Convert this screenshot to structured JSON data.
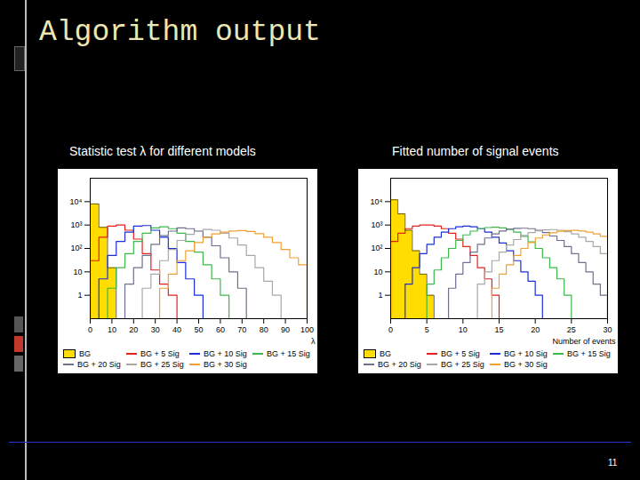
{
  "slide": {
    "title": "Algorithm output",
    "page": 11
  },
  "chart_data": [
    {
      "type": "histogram",
      "title": "Statistic test λ for different models",
      "xlabel": "λ",
      "log": "y",
      "grid": false,
      "legend": "bottom",
      "xlim": [
        0,
        100
      ],
      "xticks": [
        0,
        10,
        20,
        30,
        40,
        50,
        60,
        70,
        80,
        90,
        100
      ],
      "ylim": [
        0.1,
        100000
      ],
      "yticks": [
        1,
        10,
        {
          "value": 100,
          "label": "10²"
        },
        {
          "value": 1000,
          "label": "10³"
        },
        {
          "value": 10000,
          "label": "10⁴"
        }
      ],
      "bins": [
        0,
        4,
        8,
        12,
        16,
        20,
        24,
        28,
        32,
        36,
        40,
        44,
        48,
        52,
        56,
        60,
        64,
        68,
        72,
        76,
        80,
        84,
        88,
        92,
        96,
        100
      ],
      "series": [
        {
          "name": "BG",
          "color": "#ffdd00",
          "type": "area",
          "values": [
            8000,
            800,
            15,
            null,
            null,
            null,
            null,
            null,
            null,
            null,
            null,
            null,
            null,
            null,
            null,
            null,
            null,
            null,
            null,
            null,
            null,
            null,
            null,
            null,
            null
          ]
        },
        {
          "name": "BG + 5 Sig",
          "color": "#e3201c",
          "type": "line",
          "values": [
            30,
            300,
            900,
            1000,
            600,
            250,
            60,
            12,
            3,
            1,
            null,
            null,
            null,
            null,
            null,
            null,
            null,
            null,
            null,
            null,
            null,
            null,
            null,
            null,
            null
          ]
        },
        {
          "name": "BG + 10 Sig",
          "color": "#1a2fd6",
          "type": "line",
          "values": [
            null,
            5,
            50,
            200,
            500,
            900,
            950,
            600,
            300,
            100,
            25,
            5,
            1,
            null,
            null,
            null,
            null,
            null,
            null,
            null,
            null,
            null,
            null,
            null,
            null
          ]
        },
        {
          "name": "BG + 15 Sig",
          "color": "#3cb94a",
          "type": "line",
          "values": [
            null,
            null,
            2,
            15,
            60,
            200,
            450,
            750,
            850,
            700,
            450,
            200,
            70,
            20,
            5,
            1,
            null,
            null,
            null,
            null,
            null,
            null,
            null,
            null,
            null
          ]
        },
        {
          "name": "BG + 20 Sig",
          "color": "#6f6f8f",
          "type": "line",
          "values": [
            null,
            null,
            null,
            null,
            3,
            15,
            50,
            150,
            350,
            550,
            750,
            700,
            550,
            300,
            130,
            40,
            10,
            2,
            null,
            null,
            null,
            null,
            null,
            null,
            null
          ]
        },
        {
          "name": "BG + 25 Sig",
          "color": "#a8a8a8",
          "type": "line",
          "values": [
            null,
            null,
            null,
            null,
            null,
            null,
            2,
            8,
            30,
            90,
            220,
            400,
            550,
            650,
            600,
            450,
            280,
            140,
            50,
            15,
            4,
            1,
            null,
            null,
            null
          ]
        },
        {
          "name": "BG + 30 Sig",
          "color": "#f0a030",
          "type": "line",
          "values": [
            null,
            null,
            null,
            null,
            null,
            null,
            null,
            null,
            2,
            8,
            30,
            80,
            180,
            300,
            420,
            500,
            560,
            580,
            530,
            430,
            300,
            180,
            90,
            40,
            20
          ]
        }
      ]
    },
    {
      "type": "histogram",
      "title": "Fitted number of signal events",
      "xlabel": "Number of events",
      "log": "y",
      "grid": false,
      "legend": "bottom",
      "xlim": [
        0,
        30
      ],
      "xticks": [
        0,
        5,
        10,
        15,
        20,
        25,
        30
      ],
      "ylim": [
        0.1,
        100000
      ],
      "yticks": [
        1,
        10,
        {
          "value": 100,
          "label": "10²"
        },
        {
          "value": 1000,
          "label": "10³"
        },
        {
          "value": 10000,
          "label": "10⁴"
        }
      ],
      "bins": [
        0,
        1,
        2,
        3,
        4,
        5,
        6,
        7,
        8,
        9,
        10,
        11,
        12,
        13,
        14,
        15,
        16,
        17,
        18,
        19,
        20,
        21,
        22,
        23,
        24,
        25,
        26,
        27,
        28,
        29,
        30
      ],
      "series": [
        {
          "name": "BG",
          "color": "#ffdd00",
          "type": "area",
          "values": [
            12000,
            3000,
            600,
            80,
            8,
            1,
            null,
            null,
            null,
            null,
            null,
            null,
            null,
            null,
            null,
            null,
            null,
            null,
            null,
            null,
            null,
            null,
            null,
            null,
            null,
            null,
            null,
            null,
            null,
            null
          ]
        },
        {
          "name": "BG + 5 Sig",
          "color": "#e3201c",
          "type": "line",
          "values": [
            200,
            450,
            700,
            900,
            1000,
            1000,
            900,
            700,
            450,
            250,
            120,
            50,
            15,
            5,
            1,
            null,
            null,
            null,
            null,
            null,
            null,
            null,
            null,
            null,
            null,
            null,
            null,
            null,
            null,
            null
          ]
        },
        {
          "name": "BG + 10 Sig",
          "color": "#1a2fd6",
          "type": "line",
          "values": [
            null,
            null,
            3,
            15,
            60,
            150,
            300,
            500,
            700,
            850,
            900,
            850,
            700,
            500,
            300,
            170,
            80,
            30,
            10,
            4,
            1,
            null,
            null,
            null,
            null,
            null,
            null,
            null,
            null,
            null
          ]
        },
        {
          "name": "BG + 15 Sig",
          "color": "#3cb94a",
          "type": "line",
          "values": [
            null,
            null,
            null,
            null,
            null,
            3,
            12,
            40,
            100,
            220,
            380,
            550,
            700,
            780,
            800,
            760,
            650,
            500,
            330,
            190,
            100,
            40,
            15,
            5,
            1,
            null,
            null,
            null,
            null,
            null
          ]
        },
        {
          "name": "BG + 20 Sig",
          "color": "#6f6f8f",
          "type": "line",
          "values": [
            null,
            null,
            null,
            null,
            null,
            null,
            null,
            null,
            2,
            8,
            25,
            70,
            150,
            280,
            420,
            560,
            670,
            720,
            730,
            700,
            600,
            480,
            340,
            220,
            120,
            60,
            25,
            10,
            3,
            1
          ]
        },
        {
          "name": "BG + 25 Sig",
          "color": "#a8a8a8",
          "type": "line",
          "values": [
            null,
            null,
            null,
            null,
            null,
            null,
            null,
            null,
            null,
            null,
            null,
            null,
            3,
            10,
            30,
            70,
            140,
            240,
            360,
            480,
            570,
            620,
            640,
            600,
            520,
            420,
            300,
            200,
            120,
            60
          ]
        },
        {
          "name": "BG + 30 Sig",
          "color": "#f0a030",
          "type": "line",
          "values": [
            null,
            null,
            null,
            null,
            null,
            null,
            null,
            null,
            null,
            null,
            null,
            null,
            null,
            null,
            2,
            8,
            20,
            50,
            100,
            180,
            280,
            380,
            470,
            540,
            580,
            590,
            560,
            500,
            420,
            330
          ]
        }
      ]
    }
  ]
}
